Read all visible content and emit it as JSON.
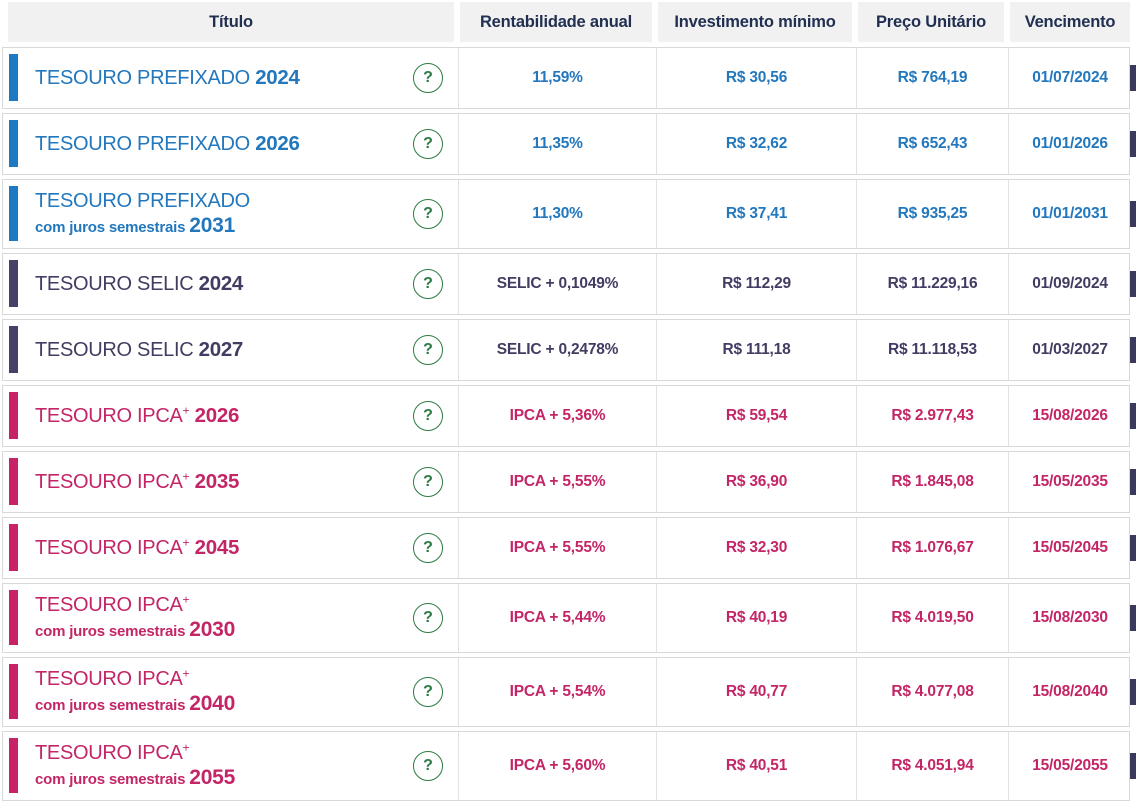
{
  "colors": {
    "prefixado": "#2277bd",
    "prefixado_bar": "#1f79c2",
    "selic": "#413d62",
    "selic_bar": "#474168",
    "ipca": "#c32566",
    "ipca_bar": "#c92368",
    "header_bg": "#f1f1f2",
    "header_text": "#213050",
    "help_green": "#2c7a44"
  },
  "table": {
    "columns": [
      {
        "label": "Título"
      },
      {
        "label": "Rentabilidade anual"
      },
      {
        "label": "Investimento mínimo"
      },
      {
        "label": "Preço Unitário"
      },
      {
        "label": "Vencimento"
      }
    ],
    "help_label": "?",
    "rows": [
      {
        "type": "prefixado",
        "name": "TESOURO PREFIXADO",
        "sup": "",
        "subtitle": "",
        "year": "2024",
        "rate": "11,59%",
        "min_investment": "R$ 30,56",
        "unit_price": "R$ 764,19",
        "maturity": "01/07/2024"
      },
      {
        "type": "prefixado",
        "name": "TESOURO PREFIXADO",
        "sup": "",
        "subtitle": "",
        "year": "2026",
        "rate": "11,35%",
        "min_investment": "R$ 32,62",
        "unit_price": "R$ 652,43",
        "maturity": "01/01/2026"
      },
      {
        "type": "prefixado",
        "name": "TESOURO PREFIXADO",
        "sup": "",
        "subtitle": "com juros semestrais",
        "year": "2031",
        "rate": "11,30%",
        "min_investment": "R$ 37,41",
        "unit_price": "R$ 935,25",
        "maturity": "01/01/2031"
      },
      {
        "type": "selic",
        "name": "TESOURO SELIC",
        "sup": "",
        "subtitle": "",
        "year": "2024",
        "rate": "SELIC + 0,1049%",
        "min_investment": "R$ 112,29",
        "unit_price": "R$ 11.229,16",
        "maturity": "01/09/2024"
      },
      {
        "type": "selic",
        "name": "TESOURO SELIC",
        "sup": "",
        "subtitle": "",
        "year": "2027",
        "rate": "SELIC + 0,2478%",
        "min_investment": "R$ 111,18",
        "unit_price": "R$ 11.118,53",
        "maturity": "01/03/2027"
      },
      {
        "type": "ipca",
        "name": "TESOURO IPCA",
        "sup": "+",
        "subtitle": "",
        "year": "2026",
        "rate": "IPCA + 5,36%",
        "min_investment": "R$ 59,54",
        "unit_price": "R$ 2.977,43",
        "maturity": "15/08/2026"
      },
      {
        "type": "ipca",
        "name": "TESOURO IPCA",
        "sup": "+",
        "subtitle": "",
        "year": "2035",
        "rate": "IPCA + 5,55%",
        "min_investment": "R$ 36,90",
        "unit_price": "R$ 1.845,08",
        "maturity": "15/05/2035"
      },
      {
        "type": "ipca",
        "name": "TESOURO IPCA",
        "sup": "+",
        "subtitle": "",
        "year": "2045",
        "rate": "IPCA + 5,55%",
        "min_investment": "R$ 32,30",
        "unit_price": "R$ 1.076,67",
        "maturity": "15/05/2045"
      },
      {
        "type": "ipca",
        "name": "TESOURO IPCA",
        "sup": "+",
        "subtitle": "com juros semestrais",
        "year": "2030",
        "rate": "IPCA + 5,44%",
        "min_investment": "R$ 40,19",
        "unit_price": "R$ 4.019,50",
        "maturity": "15/08/2030"
      },
      {
        "type": "ipca",
        "name": "TESOURO IPCA",
        "sup": "+",
        "subtitle": "com juros semestrais",
        "year": "2040",
        "rate": "IPCA + 5,54%",
        "min_investment": "R$ 40,77",
        "unit_price": "R$ 4.077,08",
        "maturity": "15/08/2040"
      },
      {
        "type": "ipca",
        "name": "TESOURO IPCA",
        "sup": "+",
        "subtitle": "com juros semestrais",
        "year": "2055",
        "rate": "IPCA + 5,60%",
        "min_investment": "R$ 40,51",
        "unit_price": "R$ 4.051,94",
        "maturity": "15/05/2055"
      }
    ]
  }
}
